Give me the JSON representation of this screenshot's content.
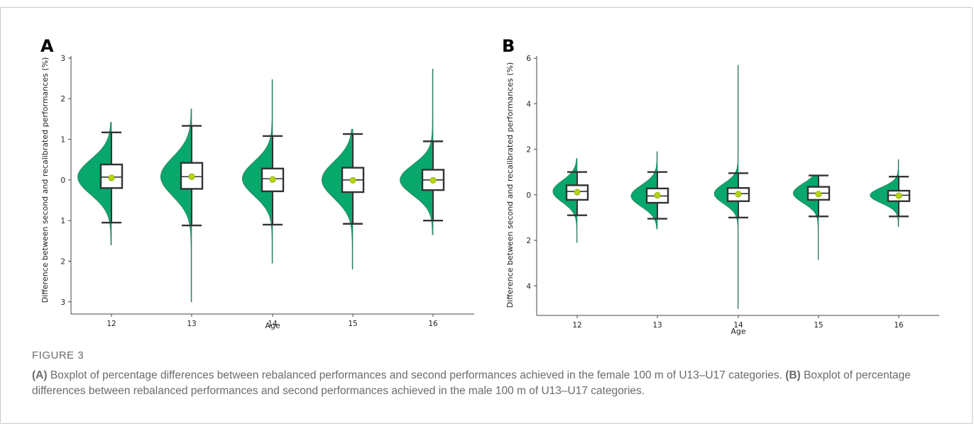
{
  "caption": {
    "figure_label": "FIGURE 3",
    "a_tag": "(A)",
    "a_text": " Boxplot of percentage differences between rebalanced performances and second performances achieved in the female 100 m of U13–U17 categories. ",
    "b_tag": "(B)",
    "b_text": " Boxplot of percentage differences between rebalanced performances and second performances achieved in the male 100 m of U13–U17 categories."
  },
  "colors": {
    "violin": "#08a76c",
    "box_edge": "#333333",
    "mean_marker": "#b4d414",
    "axis": "#444444"
  },
  "chart_data": [
    {
      "panel": "A",
      "type": "violin-box",
      "xlabel": "Age",
      "ylabel": "Difference between second and recalibrated performances (%)",
      "categories": [
        "12",
        "13",
        "14",
        "15",
        "16"
      ],
      "ylim": [
        -3.3,
        3.05
      ],
      "yticks": [
        -3,
        -2,
        -1,
        0,
        1,
        2,
        3
      ],
      "ytick_labels": [
        "3",
        "2",
        "1",
        "0",
        "1",
        "2",
        "3"
      ],
      "grid": false,
      "series": [
        {
          "category": "12",
          "min": -1.05,
          "q1": -0.2,
          "median": 0.07,
          "q3": 0.38,
          "max": 1.17,
          "mean": 0.05,
          "extent": [
            -1.6,
            1.42
          ],
          "density_max": 1.0
        },
        {
          "category": "13",
          "min": -1.12,
          "q1": -0.22,
          "median": 0.08,
          "q3": 0.42,
          "max": 1.33,
          "mean": 0.08,
          "extent": [
            -3.0,
            1.75
          ],
          "density_max": 0.92
        },
        {
          "category": "14",
          "min": -1.1,
          "q1": -0.28,
          "median": 0.03,
          "q3": 0.28,
          "max": 1.08,
          "mean": 0.01,
          "extent": [
            -2.05,
            2.47
          ],
          "density_max": 0.9
        },
        {
          "category": "15",
          "min": -1.08,
          "q1": -0.3,
          "median": 0.0,
          "q3": 0.3,
          "max": 1.13,
          "mean": -0.01,
          "extent": [
            -2.2,
            1.25
          ],
          "density_max": 0.92
        },
        {
          "category": "16",
          "min": -1.0,
          "q1": -0.25,
          "median": 0.0,
          "q3": 0.25,
          "max": 0.95,
          "mean": -0.01,
          "extent": [
            -1.35,
            2.73
          ],
          "density_max": 0.98
        }
      ]
    },
    {
      "panel": "B",
      "type": "violin-box",
      "xlabel": "Age",
      "ylabel": "Difference between second and recalibrated performances (%)",
      "categories": [
        "12",
        "13",
        "14",
        "15",
        "16"
      ],
      "ylim": [
        -5.3,
        6.1
      ],
      "yticks": [
        -4,
        -2,
        0,
        2,
        4,
        6
      ],
      "ytick_labels": [
        "4",
        "2",
        "0",
        "2",
        "4",
        "6"
      ],
      "grid": false,
      "series": [
        {
          "category": "12",
          "min": -0.9,
          "q1": -0.22,
          "median": 0.15,
          "q3": 0.42,
          "max": 1.0,
          "mean": 0.12,
          "extent": [
            -2.1,
            1.6
          ],
          "density_max": 0.72
        },
        {
          "category": "13",
          "min": -1.05,
          "q1": -0.35,
          "median": -0.05,
          "q3": 0.28,
          "max": 1.0,
          "mean": -0.02,
          "extent": [
            -1.5,
            1.9
          ],
          "density_max": 0.78
        },
        {
          "category": "14",
          "min": -1.0,
          "q1": -0.28,
          "median": 0.05,
          "q3": 0.3,
          "max": 0.95,
          "mean": 0.03,
          "extent": [
            -5.0,
            5.7
          ],
          "density_max": 0.72
        },
        {
          "category": "15",
          "min": -0.95,
          "q1": -0.22,
          "median": 0.07,
          "q3": 0.35,
          "max": 0.85,
          "mean": 0.03,
          "extent": [
            -2.85,
            0.85
          ],
          "density_max": 0.75
        },
        {
          "category": "16",
          "min": -0.95,
          "q1": -0.28,
          "median": -0.02,
          "q3": 0.18,
          "max": 0.8,
          "mean": -0.04,
          "extent": [
            -1.4,
            1.55
          ],
          "density_max": 0.85
        }
      ]
    }
  ]
}
